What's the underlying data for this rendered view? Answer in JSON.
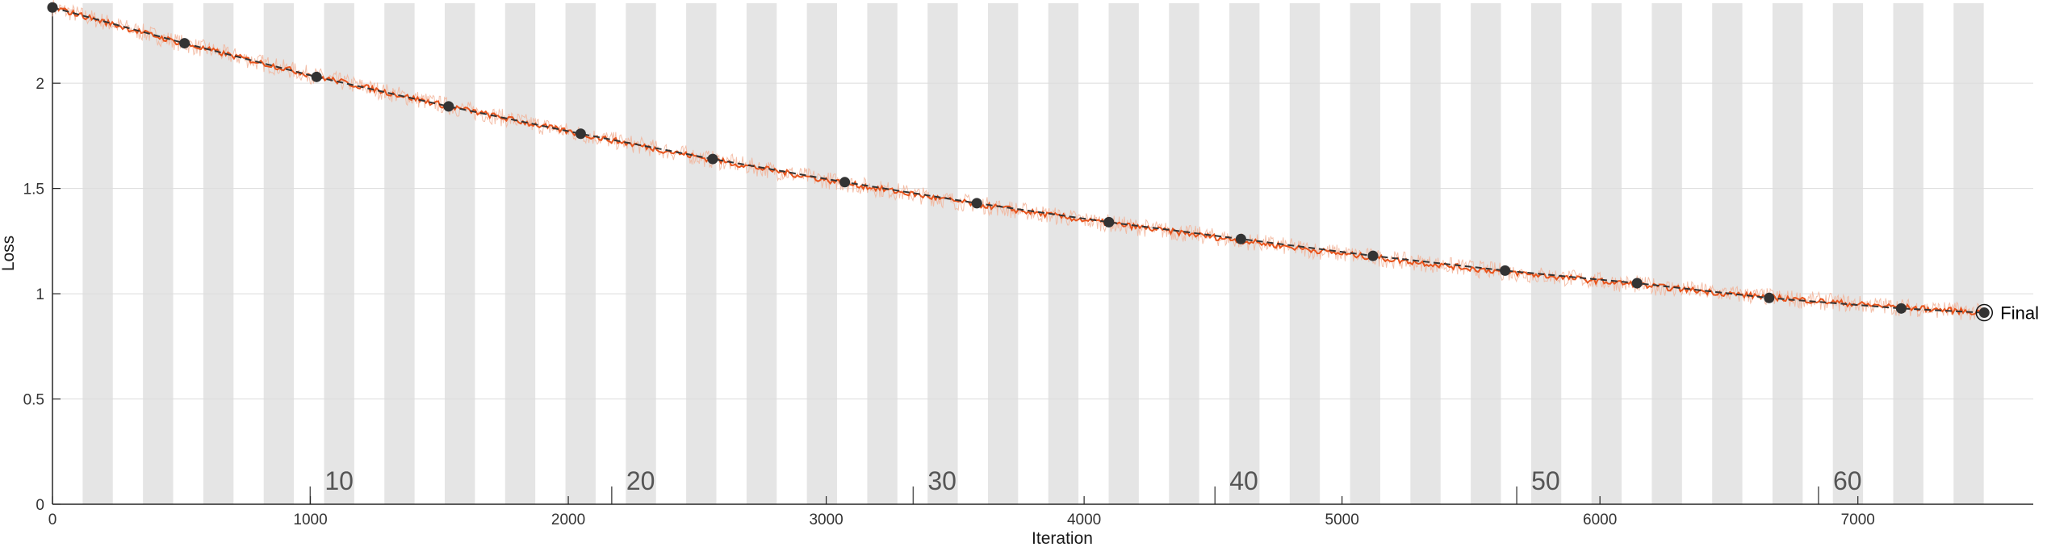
{
  "chart_data": {
    "type": "line",
    "title": "",
    "xlabel": "Iteration",
    "ylabel": "Loss",
    "xlim": [
      0,
      7680
    ],
    "ylim": [
      0,
      2.38
    ],
    "x_ticks": [
      0,
      1000,
      2000,
      3000,
      4000,
      5000,
      6000,
      7000
    ],
    "y_ticks": [
      0,
      0.5,
      1,
      1.5,
      2
    ],
    "y_tick_labels": [
      "0",
      "0.5",
      "1",
      "1.5",
      "2"
    ],
    "grid": "horizontal",
    "epoch_band_color": "#e5e5e5",
    "epoch_bands": {
      "iterations_per_epoch": 117,
      "first_shaded_epoch": 2,
      "last_shaded_epoch": 64
    },
    "epoch_labels": [
      {
        "epoch": "10",
        "x": 1112
      },
      {
        "epoch": "20",
        "x": 2281
      },
      {
        "epoch": "30",
        "x": 3450
      },
      {
        "epoch": "40",
        "x": 4620
      },
      {
        "epoch": "50",
        "x": 5790
      },
      {
        "epoch": "60",
        "x": 6960
      }
    ],
    "series": [
      {
        "role": "raw",
        "color": "#f2b49a",
        "x": [
          0,
          500,
          1000,
          1500,
          2000,
          2500,
          3000,
          3500,
          4000,
          4500,
          5000,
          5500,
          6000,
          6500,
          7000,
          7490
        ],
        "values": [
          2.36,
          2.19,
          2.04,
          1.9,
          1.77,
          1.65,
          1.54,
          1.44,
          1.35,
          1.27,
          1.19,
          1.12,
          1.06,
          1.0,
          0.95,
          0.91
        ]
      },
      {
        "role": "smoothed",
        "color": "#e8541c",
        "x": [
          0,
          500,
          1000,
          1500,
          2000,
          2500,
          3000,
          3500,
          4000,
          4500,
          5000,
          5500,
          6000,
          6500,
          7000,
          7490
        ],
        "values": [
          2.36,
          2.19,
          2.04,
          1.9,
          1.77,
          1.65,
          1.54,
          1.44,
          1.35,
          1.27,
          1.19,
          1.12,
          1.06,
          1.0,
          0.95,
          0.91
        ]
      },
      {
        "role": "validation",
        "color": "#333333",
        "marker": "circle",
        "x": [
          0,
          512,
          1024,
          1536,
          2048,
          2560,
          3072,
          3584,
          4096,
          4608,
          5120,
          5632,
          6144,
          6656,
          7168,
          7490
        ],
        "values": [
          2.36,
          2.19,
          2.03,
          1.89,
          1.76,
          1.64,
          1.53,
          1.43,
          1.34,
          1.26,
          1.18,
          1.11,
          1.05,
          0.98,
          0.93,
          0.91
        ]
      }
    ],
    "annotations": [
      {
        "text": "Final",
        "x": 7490,
        "y": 0.91
      }
    ]
  }
}
